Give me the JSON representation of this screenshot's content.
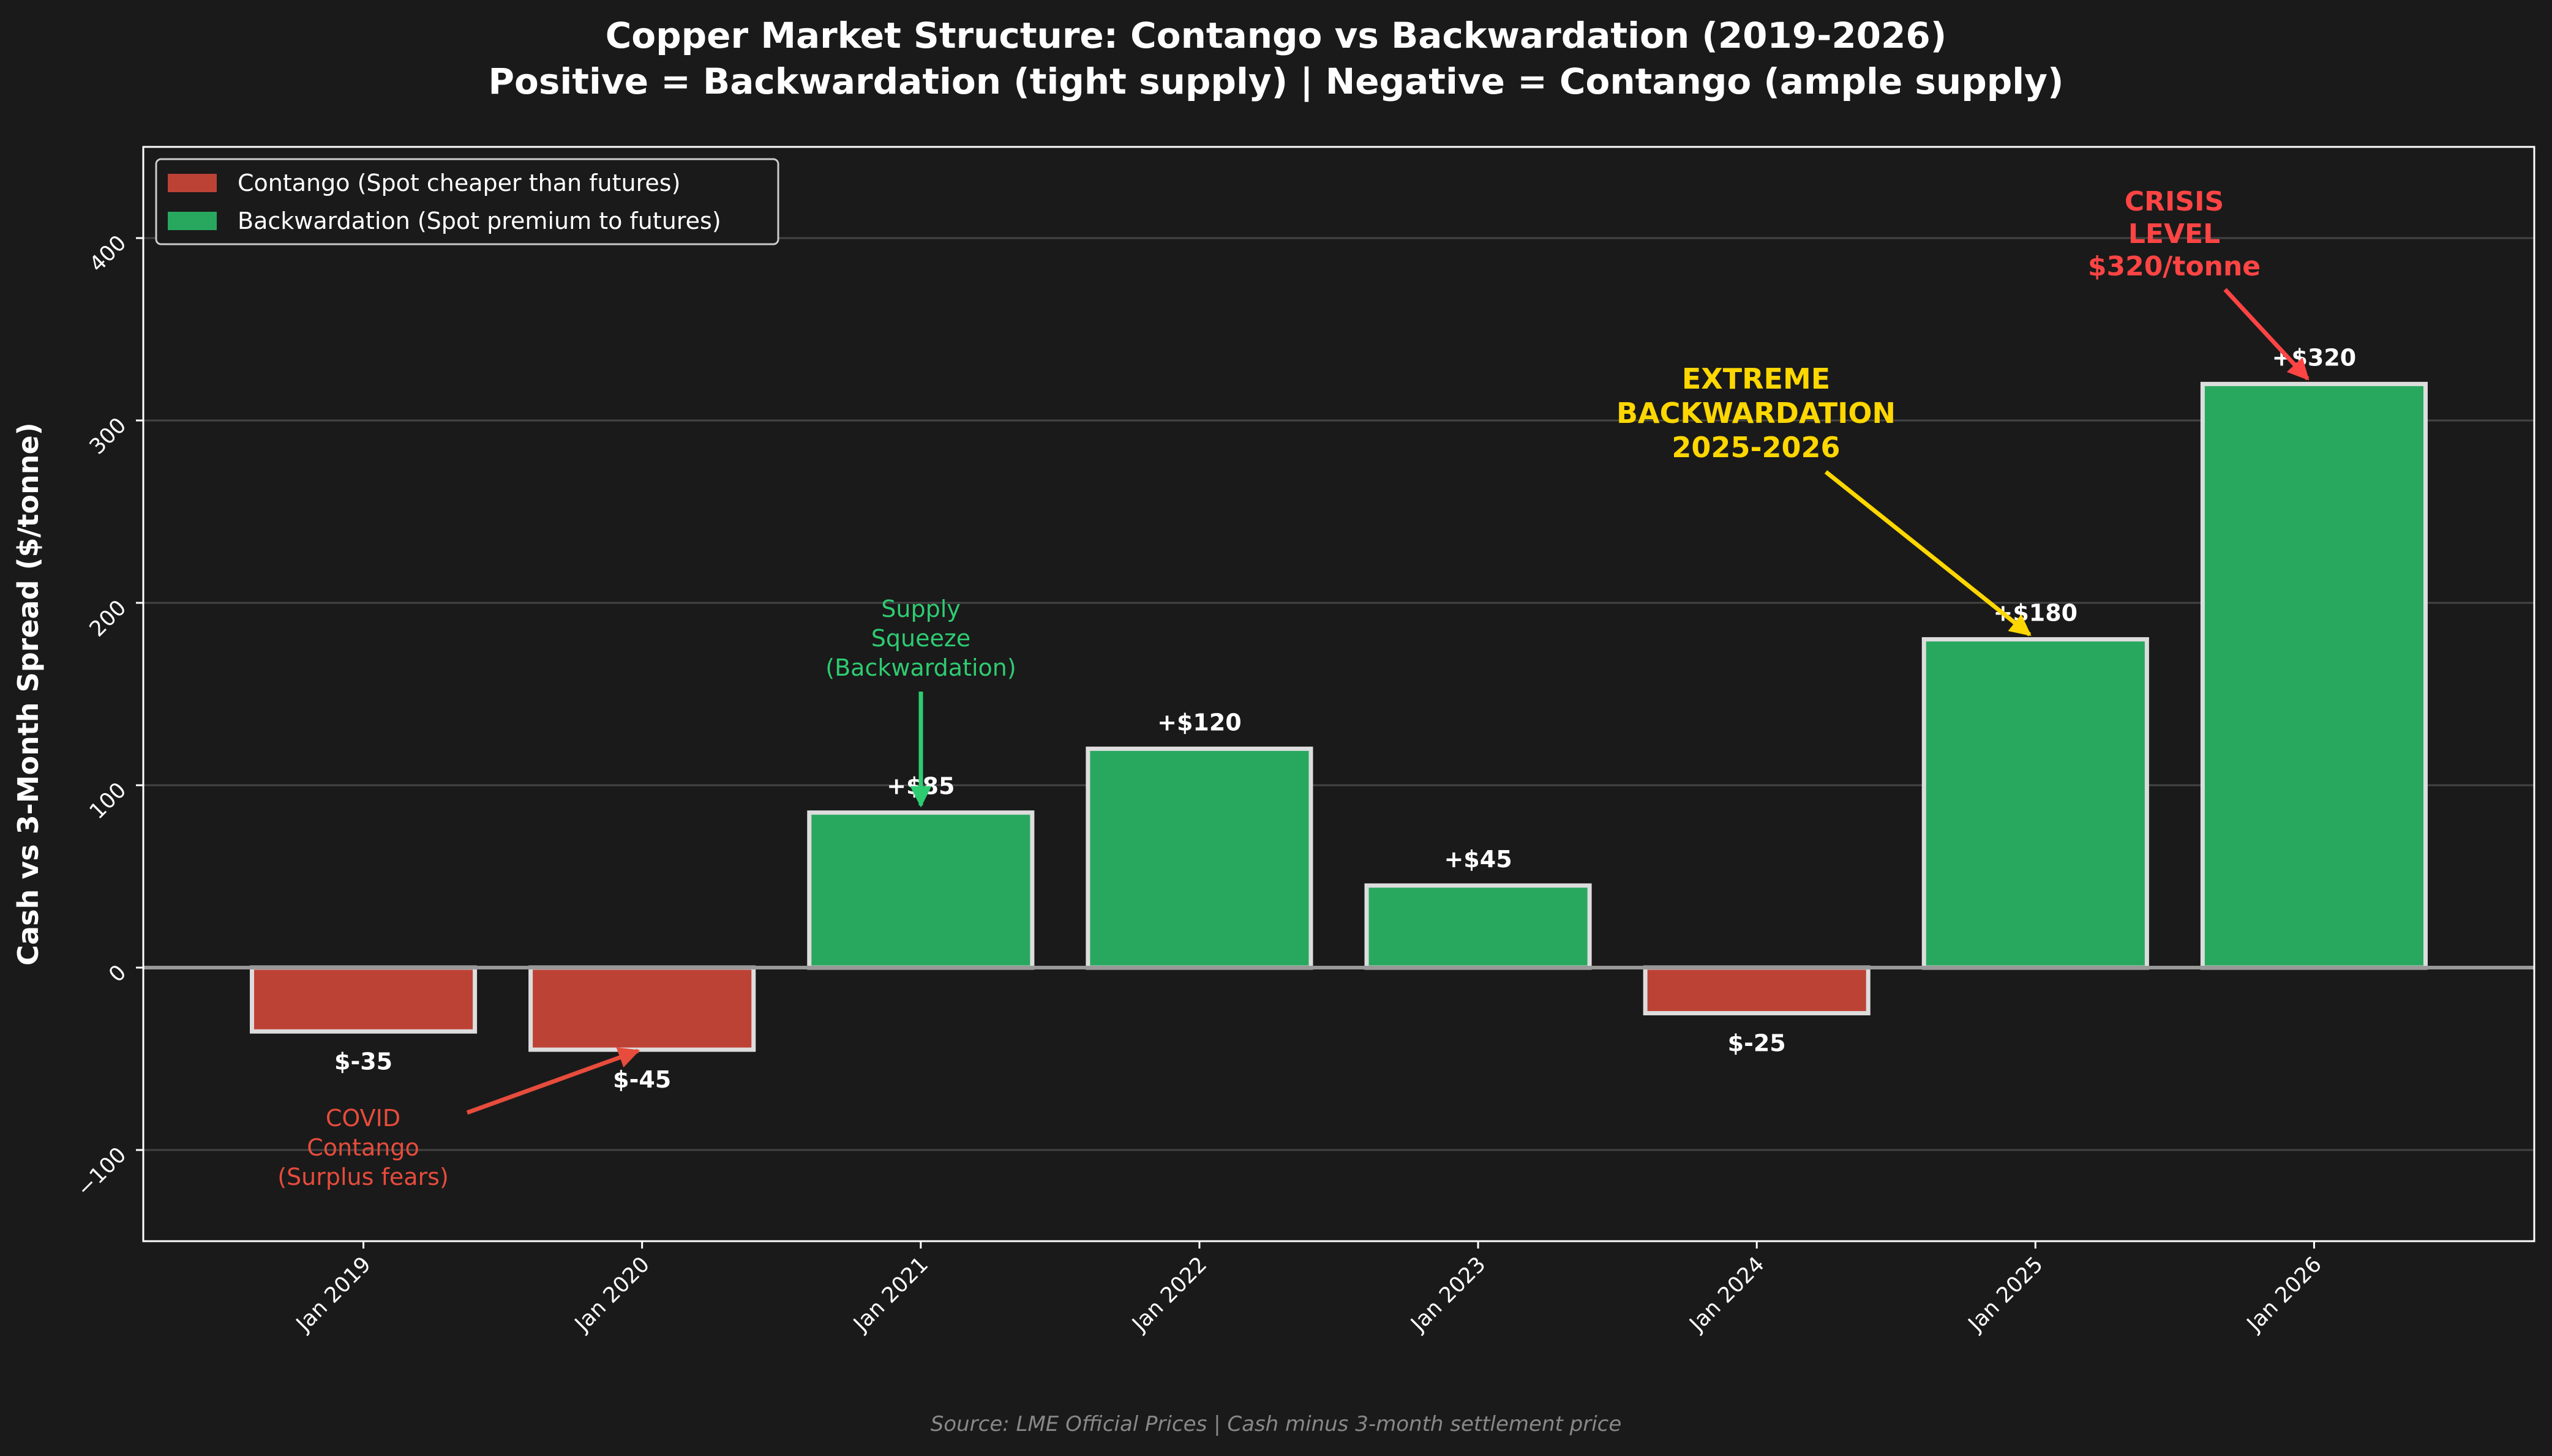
{
  "chart_data": {
    "type": "bar",
    "title": "Copper Market Structure: Contango vs Backwardation (2019-2026)",
    "subtitle": "Positive = Backwardation (tight supply) | Negative = Contango (ample supply)",
    "xlabel": "",
    "ylabel": "Cash vs 3-Month Spread ($/tonne)",
    "categories": [
      "Jan 2019",
      "Jan 2020",
      "Jan 2021",
      "Jan 2022",
      "Jan 2023",
      "Jan 2024",
      "Jan 2025",
      "Jan 2026"
    ],
    "values": [
      -35,
      -45,
      85,
      120,
      45,
      -25,
      180,
      320
    ],
    "data_labels": [
      "$-35",
      "$-45",
      "+$85",
      "+$120",
      "+$45",
      "$-25",
      "+$180",
      "+$320"
    ],
    "ylim": [
      -150,
      450
    ],
    "yticks": [
      -100,
      0,
      100,
      200,
      300,
      400
    ],
    "ytick_labels": [
      "−100",
      "0",
      "100",
      "200",
      "300",
      "400"
    ],
    "grid": true,
    "legend_position": "top-left",
    "legend": [
      {
        "label": "Contango (Spot cheaper than futures)",
        "color": "#bd4236"
      },
      {
        "label": "Backwardation (Spot premium to futures)",
        "color": "#28a85f"
      }
    ],
    "annotations": [
      {
        "lines": [
          "COVID",
          "Contango",
          "(Surplus fears)"
        ],
        "color": "#e74c3c",
        "target": "Jan 2020"
      },
      {
        "lines": [
          "Supply",
          "Squeeze",
          "(Backwardation)"
        ],
        "color": "#2ecc71",
        "target": "Jan 2021"
      },
      {
        "lines": [
          "EXTREME",
          "BACKWARDATION",
          "2025-2026"
        ],
        "color": "#ffd700",
        "target": "Jan 2025"
      },
      {
        "lines": [
          "CRISIS",
          "LEVEL",
          "$320/tonne"
        ],
        "color": "#ff4444",
        "target": "Jan 2026"
      }
    ],
    "source": "Source: LME Official Prices | Cash minus 3-month settlement price"
  },
  "colors": {
    "background": "#1a1a1a",
    "contango": "#bd4236",
    "backwardation": "#28a85f"
  }
}
